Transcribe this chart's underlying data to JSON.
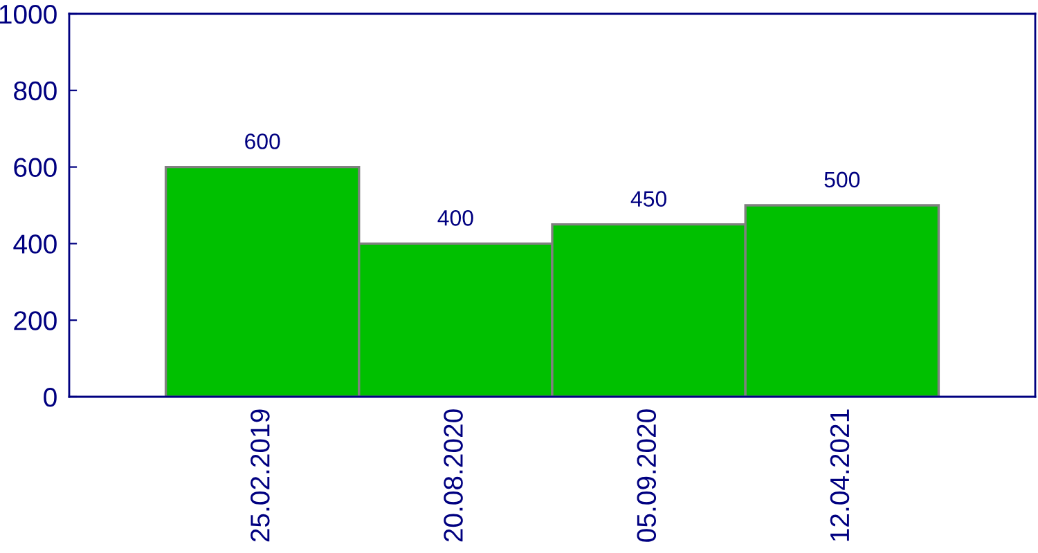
{
  "chart_data": {
    "type": "bar",
    "categories": [
      "25.02.2019",
      "20.08.2020",
      "05.09.2020",
      "12.04.2021"
    ],
    "values": [
      600,
      400,
      450,
      500
    ],
    "color": "#00c000",
    "ylim": [
      0,
      1000
    ],
    "yticks": [
      0,
      200,
      400,
      600,
      800,
      1000
    ],
    "data_labels": true,
    "grid": false,
    "legend": false
  }
}
